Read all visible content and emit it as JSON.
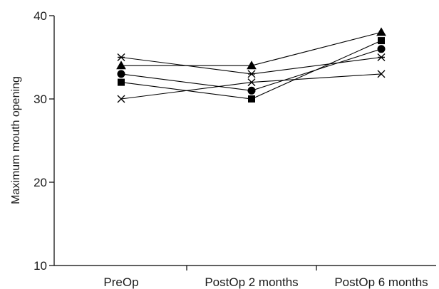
{
  "chart_data": {
    "type": "line",
    "title": "",
    "xlabel": "",
    "ylabel": "Maximum mouth opening",
    "categories": [
      "PreOp",
      "PostOp 2 months",
      "PostOp 6 months"
    ],
    "ylim": [
      10,
      40
    ],
    "yticks": [
      10,
      20,
      30,
      40
    ],
    "grid": false,
    "legend": "none",
    "series": [
      {
        "marker": "triangle",
        "values": [
          34,
          34,
          38
        ]
      },
      {
        "marker": "square",
        "values": [
          32,
          30,
          37
        ]
      },
      {
        "marker": "circle",
        "values": [
          33,
          31,
          36
        ]
      },
      {
        "marker": "asterisk",
        "values": [
          35,
          33,
          35
        ]
      },
      {
        "marker": "x",
        "values": [
          30,
          32,
          33
        ]
      }
    ]
  }
}
